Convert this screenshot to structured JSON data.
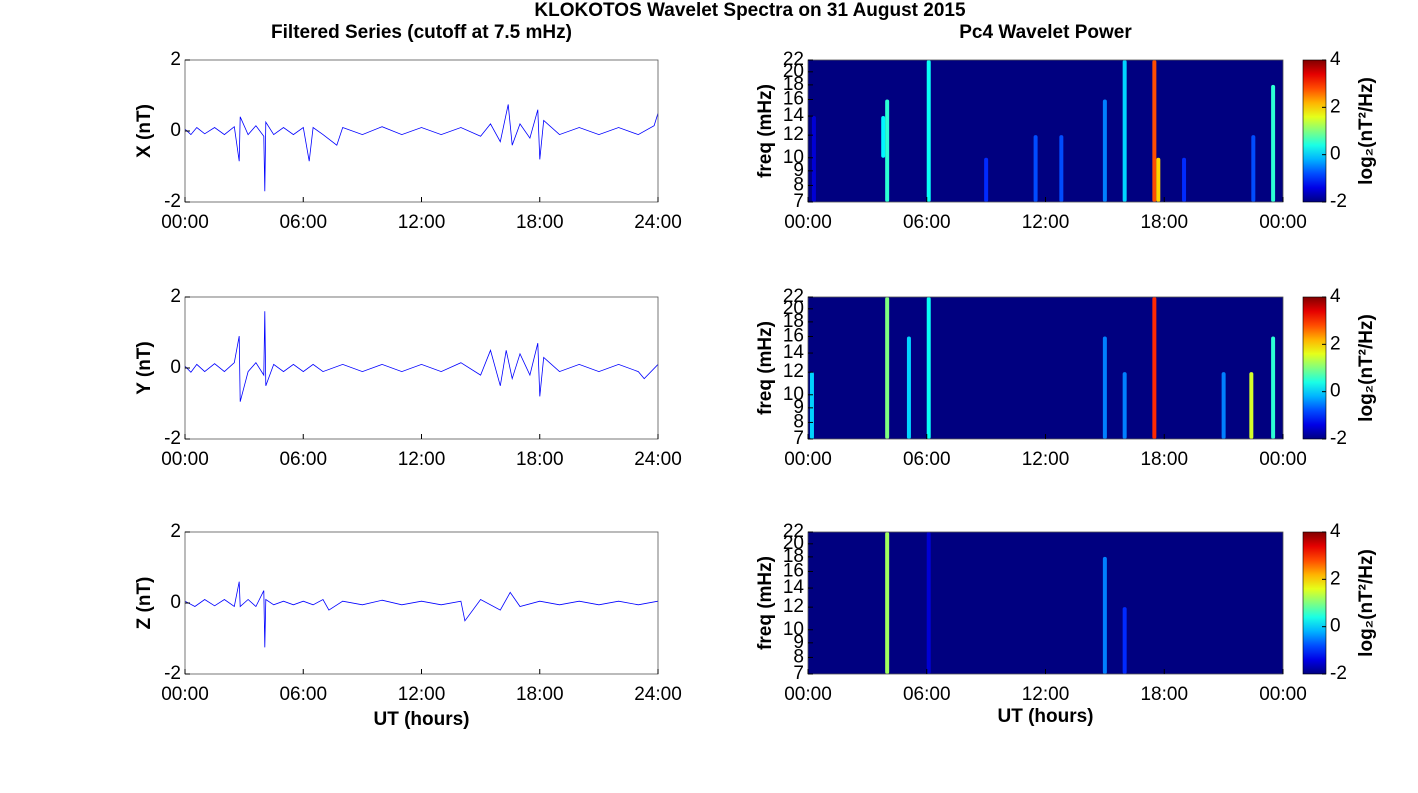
{
  "title": "KLOKOTOS Wavelet Spectra on 31 August 2015",
  "chart_data": [
    {
      "type": "line",
      "title": "Filtered Series (cutoff at 7.5 mHz)",
      "y_label": "X (nT)",
      "color": "#0000ff",
      "x": [
        0,
        0.3,
        0.6,
        1,
        1.5,
        2,
        2.5,
        2.75,
        2.8,
        3.2,
        3.6,
        4,
        4.05,
        4.1,
        4.5,
        5,
        5.5,
        6,
        6.3,
        6.5,
        7,
        7.7,
        8,
        9,
        10,
        11,
        12,
        13,
        14,
        15,
        15.5,
        16,
        16.4,
        16.6,
        17,
        17.5,
        17.9,
        18,
        18.2,
        19,
        20,
        21,
        22,
        23,
        23.8,
        24
      ],
      "values": [
        0.05,
        -0.1,
        0.1,
        -0.08,
        0.1,
        -0.1,
        0.12,
        -0.85,
        0.4,
        -0.1,
        0.15,
        -0.15,
        -1.7,
        0.25,
        -0.1,
        0.1,
        -0.1,
        0.1,
        -0.85,
        0.1,
        -0.1,
        -0.4,
        0.1,
        -0.1,
        0.12,
        -0.1,
        0.1,
        -0.1,
        0.1,
        -0.15,
        0.2,
        -0.3,
        0.75,
        -0.4,
        0.2,
        -0.2,
        0.6,
        -0.8,
        0.3,
        -0.1,
        0.1,
        -0.1,
        0.1,
        -0.1,
        0.15,
        0.5
      ],
      "xlim": [
        0,
        24
      ],
      "xticks": [
        {
          "value": 0,
          "label": "00:00"
        },
        {
          "value": 6,
          "label": "06:00"
        },
        {
          "value": 12,
          "label": "12:00"
        },
        {
          "value": 18,
          "label": "18:00"
        },
        {
          "value": 24,
          "label": "24:00"
        }
      ],
      "ylim": [
        -2,
        2
      ],
      "yticks": [
        -2,
        0,
        2
      ]
    },
    {
      "type": "heatmap",
      "title": "Pc4 Wavelet Power",
      "y_label": "freq (mHz)",
      "colorbar_label": "log₂(nT²/Hz)",
      "yscale": "log",
      "x": [
        0.3,
        3.8,
        4,
        6.1,
        9,
        11.5,
        12.8,
        15,
        16,
        17.5,
        17.7,
        19,
        22.5,
        23.5
      ],
      "ymin": [
        7,
        10,
        7,
        7,
        7,
        7,
        7,
        7,
        7,
        7,
        7,
        7,
        7,
        7
      ],
      "ymax": [
        14,
        14,
        16,
        22,
        10,
        12,
        12,
        16,
        22,
        22,
        10,
        10,
        12,
        18
      ],
      "values": [
        -1.5,
        0.2,
        0.5,
        0.3,
        -1,
        -0.8,
        -0.8,
        -0.5,
        0,
        2.8,
        2,
        -1,
        -0.8,
        0.5
      ],
      "xlim": [
        0,
        24
      ],
      "xticks": [
        {
          "value": 0,
          "label": "00:00"
        },
        {
          "value": 6,
          "label": "06:00"
        },
        {
          "value": 12,
          "label": "12:00"
        },
        {
          "value": 18,
          "label": "18:00"
        },
        {
          "value": 24,
          "label": "00:00"
        }
      ],
      "ylim": [
        7,
        22
      ],
      "yticks": [
        7,
        8,
        9,
        10,
        12,
        14,
        16,
        18,
        20,
        22
      ],
      "zlim": [
        -2,
        4
      ],
      "zticks": [
        -2,
        0,
        2,
        4
      ]
    },
    {
      "type": "line",
      "y_label": "Y (nT)",
      "color": "#0000ff",
      "x": [
        0,
        0.3,
        0.6,
        1,
        1.5,
        2,
        2.5,
        2.75,
        2.8,
        3.2,
        3.6,
        4,
        4.05,
        4.1,
        4.5,
        5,
        5.5,
        6,
        6.5,
        7,
        8,
        9,
        10,
        11,
        12,
        13,
        14,
        15,
        15.5,
        16,
        16.3,
        16.6,
        17,
        17.5,
        17.9,
        18,
        18.2,
        19,
        20,
        21,
        22,
        23,
        23.3,
        24
      ],
      "values": [
        0.05,
        -0.12,
        0.1,
        -0.1,
        0.12,
        -0.1,
        0.15,
        0.9,
        -0.95,
        -0.1,
        0.15,
        -0.2,
        1.6,
        -0.5,
        0.1,
        -0.1,
        0.1,
        -0.1,
        0.1,
        -0.1,
        0.1,
        -0.1,
        0.1,
        -0.1,
        0.1,
        -0.1,
        0.15,
        -0.2,
        0.5,
        -0.5,
        0.5,
        -0.3,
        0.4,
        -0.2,
        0.7,
        -0.8,
        0.3,
        -0.1,
        0.1,
        -0.1,
        0.1,
        -0.1,
        -0.3,
        0.1
      ],
      "xlim": [
        0,
        24
      ],
      "xticks": [
        {
          "value": 0,
          "label": "00:00"
        },
        {
          "value": 6,
          "label": "06:00"
        },
        {
          "value": 12,
          "label": "12:00"
        },
        {
          "value": 18,
          "label": "18:00"
        },
        {
          "value": 24,
          "label": "24:00"
        }
      ],
      "ylim": [
        -2,
        2
      ],
      "yticks": [
        -2,
        0,
        2
      ]
    },
    {
      "type": "heatmap",
      "y_label": "freq (mHz)",
      "colorbar_label": "log₂(nT²/Hz)",
      "yscale": "log",
      "x": [
        0.2,
        4,
        5.1,
        6.1,
        15,
        16,
        17.5,
        21,
        22.4,
        23.5
      ],
      "ymin": [
        7,
        7,
        7,
        7,
        7,
        7,
        7,
        7,
        7,
        7
      ],
      "ymax": [
        12,
        22,
        16,
        22,
        16,
        12,
        22,
        12,
        12,
        16
      ],
      "values": [
        0,
        1,
        0,
        0.3,
        -0.5,
        -0.5,
        3,
        -0.5,
        1.5,
        0.5
      ],
      "xlim": [
        0,
        24
      ],
      "xticks": [
        {
          "value": 0,
          "label": "00:00"
        },
        {
          "value": 6,
          "label": "06:00"
        },
        {
          "value": 12,
          "label": "12:00"
        },
        {
          "value": 18,
          "label": "18:00"
        },
        {
          "value": 24,
          "label": "00:00"
        }
      ],
      "ylim": [
        7,
        22
      ],
      "yticks": [
        7,
        8,
        9,
        10,
        12,
        14,
        16,
        18,
        20,
        22
      ],
      "zlim": [
        -2,
        4
      ],
      "zticks": [
        -2,
        0,
        2,
        4
      ]
    },
    {
      "type": "line",
      "y_label": "Z (nT)",
      "x_label": "UT (hours)",
      "color": "#0000ff",
      "x": [
        0,
        0.5,
        1,
        1.5,
        2,
        2.5,
        2.75,
        2.8,
        3.2,
        3.6,
        4,
        4.05,
        4.1,
        4.5,
        5,
        5.5,
        6,
        6.5,
        7,
        7.3,
        8,
        9,
        10,
        11,
        12,
        13,
        14,
        14.2,
        15,
        16,
        16.5,
        17,
        18,
        19,
        20,
        21,
        22,
        23,
        24
      ],
      "values": [
        0.05,
        -0.1,
        0.1,
        -0.08,
        0.1,
        -0.1,
        0.6,
        -0.1,
        0.1,
        -0.1,
        0.35,
        -1.25,
        0.1,
        -0.05,
        0.05,
        -0.05,
        0.05,
        -0.05,
        0.1,
        -0.2,
        0.05,
        -0.05,
        0.08,
        -0.05,
        0.05,
        -0.05,
        0.05,
        -0.5,
        0.1,
        -0.2,
        0.3,
        -0.1,
        0.05,
        -0.05,
        0.05,
        -0.05,
        0.05,
        -0.05,
        0.05
      ],
      "xlim": [
        0,
        24
      ],
      "xticks": [
        {
          "value": 0,
          "label": "00:00"
        },
        {
          "value": 6,
          "label": "06:00"
        },
        {
          "value": 12,
          "label": "12:00"
        },
        {
          "value": 18,
          "label": "18:00"
        },
        {
          "value": 24,
          "label": "24:00"
        }
      ],
      "ylim": [
        -2,
        2
      ],
      "yticks": [
        -2,
        0,
        2
      ]
    },
    {
      "type": "heatmap",
      "y_label": "freq (mHz)",
      "x_label": "UT (hours)",
      "colorbar_label": "log₂(nT²/Hz)",
      "yscale": "log",
      "x": [
        4,
        6.1,
        15,
        16
      ],
      "ymin": [
        7,
        7,
        7,
        7
      ],
      "ymax": [
        22,
        22,
        18,
        12
      ],
      "values": [
        1.2,
        -1.5,
        -0.5,
        -1
      ],
      "xlim": [
        0,
        24
      ],
      "xticks": [
        {
          "value": 0,
          "label": "00:00"
        },
        {
          "value": 6,
          "label": "06:00"
        },
        {
          "value": 12,
          "label": "12:00"
        },
        {
          "value": 18,
          "label": "18:00"
        },
        {
          "value": 24,
          "label": "00:00"
        }
      ],
      "ylim": [
        7,
        22
      ],
      "yticks": [
        7,
        8,
        9,
        10,
        12,
        14,
        16,
        18,
        20,
        22
      ],
      "zlim": [
        -2,
        4
      ],
      "zticks": [
        -2,
        0,
        2,
        4
      ]
    }
  ]
}
